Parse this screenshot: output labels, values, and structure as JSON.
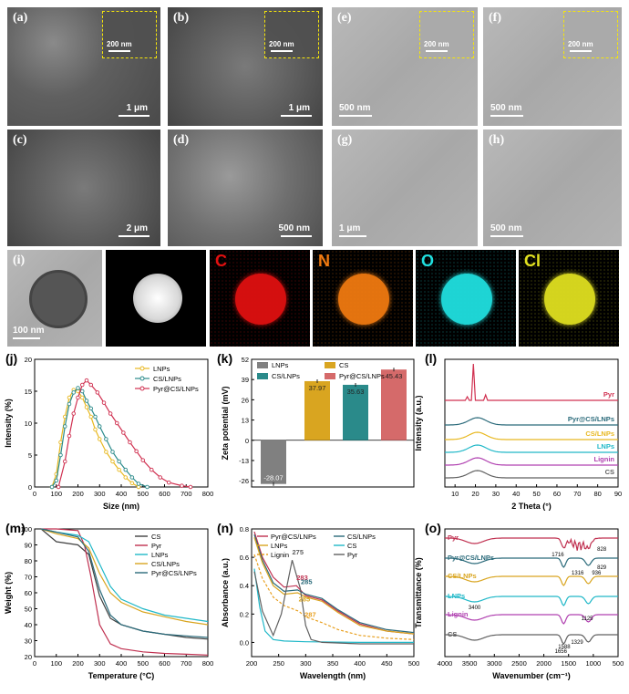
{
  "micro": {
    "a": {
      "label": "(a)",
      "scale": "1 μm",
      "inset_scale": "200 nm"
    },
    "b": {
      "label": "(b)",
      "scale": "1 μm",
      "inset_scale": "200 nm"
    },
    "e": {
      "label": "(e)",
      "scale": "500 nm",
      "inset_scale": "200 nm"
    },
    "f": {
      "label": "(f)",
      "scale": "500 nm",
      "inset_scale": "200 nm"
    },
    "c": {
      "label": "(c)",
      "scale": "2 μm"
    },
    "d": {
      "label": "(d)",
      "scale": "500 nm"
    },
    "g": {
      "label": "(g)",
      "scale": "1 μm"
    },
    "h": {
      "label": "(h)",
      "scale": "500 nm"
    },
    "i": {
      "label": "(i)",
      "scale": "100 nm"
    },
    "eds": [
      {
        "letter": "C",
        "color": "#e01010"
      },
      {
        "letter": "N",
        "color": "#f07a10"
      },
      {
        "letter": "O",
        "color": "#20e0e0"
      },
      {
        "letter": "Cl",
        "color": "#e0e020"
      }
    ]
  },
  "chart_data": [
    {
      "panel": "(j)",
      "type": "line",
      "xlabel": "Size (nm)",
      "ylabel": "Intensity (%)",
      "xlim": [
        0,
        800
      ],
      "ylim": [
        0,
        20
      ],
      "xticks": [
        0,
        100,
        200,
        300,
        400,
        500,
        600,
        700,
        800
      ],
      "yticks": [
        0,
        5,
        10,
        15,
        20
      ],
      "legend": "top-right",
      "series": [
        {
          "name": "LNPs",
          "color": "#e8b820",
          "x": [
            80,
            100,
            120,
            140,
            160,
            180,
            200,
            220,
            240,
            260,
            280,
            300,
            330,
            360,
            390,
            420,
            450,
            480
          ],
          "y": [
            0,
            2,
            7,
            11,
            14,
            15.2,
            15,
            14,
            12.5,
            11,
            9,
            7.5,
            5.5,
            4,
            2.7,
            1.5,
            0.6,
            0
          ]
        },
        {
          "name": "CS/LNPs",
          "color": "#2a8a8a",
          "x": [
            80,
            100,
            120,
            140,
            160,
            180,
            200,
            220,
            240,
            260,
            280,
            300,
            330,
            360,
            390,
            420,
            450,
            480,
            520
          ],
          "y": [
            0,
            1,
            5,
            9.5,
            13,
            14.8,
            15.5,
            15,
            13.5,
            12.3,
            11,
            9.5,
            7.5,
            5.5,
            4,
            2.7,
            1.5,
            0.5,
            0
          ]
        },
        {
          "name": "Pyr@CS/LNPs",
          "color": "#d03050",
          "x": [
            110,
            140,
            160,
            180,
            200,
            220,
            240,
            260,
            290,
            320,
            350,
            380,
            410,
            440,
            470,
            500,
            540,
            580,
            620,
            680,
            720
          ],
          "y": [
            0,
            4,
            8,
            11.5,
            14,
            16,
            16.7,
            16,
            14.8,
            13.2,
            11.5,
            10,
            8.5,
            7,
            5.6,
            4.2,
            2.7,
            1.5,
            0.7,
            0.2,
            0
          ]
        }
      ]
    },
    {
      "panel": "(k)",
      "type": "bar",
      "xlabel": "",
      "ylabel": "Zeta potential (mV)",
      "ylim": [
        -26,
        52
      ],
      "yticks": [
        -26,
        -13,
        0,
        13,
        26,
        39,
        52
      ],
      "legend": "top",
      "categories": [
        "LNPs",
        "CS",
        "CS/LNPs",
        "Pyr@CS/LNPs"
      ],
      "values": [
        -28.07,
        37.97,
        35.63,
        45.43
      ],
      "value_labels": [
        "-28.07",
        "37.97",
        "35.63",
        "45.43"
      ],
      "colors": [
        "#808080",
        "#d9a520",
        "#2a8a8a",
        "#d56a6a"
      ]
    },
    {
      "panel": "(l)",
      "type": "line",
      "xlabel": "2 Theta (°)",
      "ylabel": "Intensity (a.u.)",
      "xlim": [
        5,
        90
      ],
      "xticks": [
        10,
        20,
        30,
        40,
        50,
        60,
        70,
        80,
        90
      ],
      "series": [
        {
          "name": "Pyr",
          "color": "#d03050"
        },
        {
          "name": "Pyr@CS/LNPs",
          "color": "#2a6a7a"
        },
        {
          "name": "CS/LNPs",
          "color": "#e8b820"
        },
        {
          "name": "LNPs",
          "color": "#20b8c8"
        },
        {
          "name": "Lignin",
          "color": "#b040b0"
        },
        {
          "name": "CS",
          "color": "#606060"
        }
      ]
    },
    {
      "panel": "(m)",
      "type": "line",
      "xlabel": "Temperature (°C)",
      "ylabel": "Weight (%)",
      "xlim": [
        0,
        800
      ],
      "ylim": [
        20,
        100
      ],
      "xticks": [
        0,
        100,
        200,
        300,
        400,
        500,
        600,
        700,
        800
      ],
      "yticks": [
        20,
        30,
        40,
        50,
        60,
        70,
        80,
        90,
        100
      ],
      "legend": "top-right",
      "series": [
        {
          "name": "CS",
          "color": "#404040",
          "x": [
            30,
            100,
            200,
            250,
            300,
            350,
            400,
            500,
            600,
            700,
            800
          ],
          "y": [
            100,
            92,
            90,
            84,
            58,
            44,
            40,
            36,
            34,
            32,
            31
          ]
        },
        {
          "name": "Pyr",
          "color": "#c03050",
          "x": [
            30,
            100,
            200,
            230,
            260,
            300,
            350,
            400,
            500,
            600,
            700,
            800
          ],
          "y": [
            100,
            100,
            99,
            90,
            70,
            40,
            28,
            25,
            23,
            22,
            21.5,
            21
          ]
        },
        {
          "name": "LNPs",
          "color": "#20b8c8",
          "x": [
            30,
            100,
            200,
            250,
            300,
            350,
            400,
            500,
            600,
            700,
            800
          ],
          "y": [
            100,
            98,
            96,
            92,
            78,
            64,
            56,
            50,
            46,
            44,
            42
          ]
        },
        {
          "name": "CS/LNPs",
          "color": "#d9a520",
          "x": [
            30,
            100,
            200,
            250,
            300,
            350,
            400,
            500,
            600,
            700,
            800
          ],
          "y": [
            100,
            97,
            94,
            88,
            72,
            60,
            54,
            48,
            45,
            42,
            40
          ]
        },
        {
          "name": "Pyr@CS/LNPs",
          "color": "#2a6a7a",
          "x": [
            30,
            100,
            200,
            250,
            300,
            350,
            400,
            500,
            600,
            700,
            800
          ],
          "y": [
            100,
            98,
            95,
            86,
            62,
            46,
            40,
            36,
            34,
            33,
            32
          ]
        }
      ]
    },
    {
      "panel": "(n)",
      "type": "line",
      "xlabel": "Wavelength (nm)",
      "ylabel": "Absorbance (a.u.)",
      "xlim": [
        200,
        500
      ],
      "ylim": [
        -0.1,
        0.8
      ],
      "xticks": [
        200,
        250,
        300,
        350,
        400,
        450,
        500
      ],
      "yticks": [
        0.0,
        0.2,
        0.4,
        0.6,
        0.8
      ],
      "legend": "top",
      "annotations": [
        "275",
        "283",
        "285",
        "285",
        "287"
      ],
      "series": [
        {
          "name": "Pyr@CS/LNPs",
          "color": "#c03050",
          "x": [
            205,
            220,
            240,
            260,
            283,
            300,
            330,
            360,
            400,
            450,
            500
          ],
          "y": [
            0.78,
            0.6,
            0.46,
            0.39,
            0.4,
            0.33,
            0.3,
            0.22,
            0.13,
            0.08,
            0.06
          ]
        },
        {
          "name": "CS/LNPs",
          "color": "#2a6a7a",
          "x": [
            205,
            220,
            240,
            260,
            285,
            300,
            330,
            360,
            400,
            450,
            500
          ],
          "y": [
            0.76,
            0.58,
            0.42,
            0.36,
            0.37,
            0.34,
            0.31,
            0.23,
            0.14,
            0.09,
            0.07
          ]
        },
        {
          "name": "LNPs",
          "color": "#d9a520",
          "x": [
            205,
            220,
            240,
            260,
            285,
            300,
            330,
            360,
            400,
            450,
            500
          ],
          "y": [
            0.74,
            0.56,
            0.4,
            0.34,
            0.35,
            0.32,
            0.29,
            0.21,
            0.12,
            0.08,
            0.06
          ]
        },
        {
          "name": "CS",
          "color": "#20b8c8",
          "x": [
            205,
            215,
            225,
            240,
            260,
            300,
            400,
            500
          ],
          "y": [
            0.52,
            0.25,
            0.08,
            0.02,
            0.01,
            0.005,
            0.0,
            0.0
          ]
        },
        {
          "name": "Lignin",
          "color": "#e8a020",
          "x": [
            205,
            220,
            240,
            260,
            287,
            300,
            330,
            360,
            400,
            450,
            500
          ],
          "y": [
            0.62,
            0.45,
            0.32,
            0.26,
            0.22,
            0.18,
            0.14,
            0.09,
            0.05,
            0.03,
            0.02
          ]
        },
        {
          "name": "Pyr",
          "color": "#606060",
          "x": [
            205,
            220,
            240,
            255,
            275,
            290,
            300,
            310,
            330,
            400,
            500
          ],
          "y": [
            0.5,
            0.22,
            0.05,
            0.2,
            0.58,
            0.38,
            0.12,
            0.02,
            0.0,
            -0.01,
            -0.01
          ]
        }
      ]
    },
    {
      "panel": "(o)",
      "type": "line",
      "xlabel": "Wavenumber (cm⁻¹)",
      "ylabel": "Transmittance (%)",
      "xlim": [
        4000,
        500
      ],
      "xticks": [
        4000,
        3500,
        3000,
        2500,
        2000,
        1500,
        1000,
        500
      ],
      "peak_labels": [
        "1716",
        "1316",
        "3400",
        "1656",
        "1588",
        "1125",
        "1329",
        "936",
        "829",
        "828"
      ],
      "series": [
        {
          "name": "Pyr",
          "color": "#c03050"
        },
        {
          "name": "Pyr@CS/LNPs",
          "color": "#2a6a7a"
        },
        {
          "name": "CS/LNPs",
          "color": "#d9a520"
        },
        {
          "name": "LNPs",
          "color": "#20b8c8"
        },
        {
          "name": "Lignin",
          "color": "#b040b0"
        },
        {
          "name": "CS",
          "color": "#606060"
        }
      ]
    }
  ]
}
